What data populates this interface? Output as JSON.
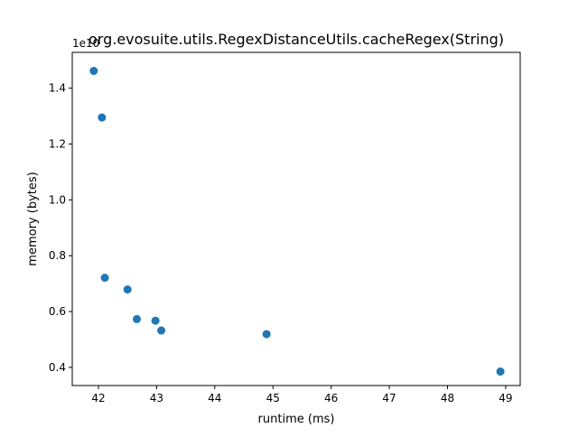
{
  "chart_data": {
    "type": "scatter",
    "title": "org.evosuite.utils.RegexDistanceUtils.cacheRegex(String)",
    "xlabel": "runtime (ms)",
    "ylabel": "memory (bytes)",
    "y_offset_label": "1e10",
    "xlim": [
      41.55,
      49.25
    ],
    "ylim": [
      0.3349,
      1.5284
    ],
    "x_ticks": [
      42,
      43,
      44,
      45,
      46,
      47,
      48,
      49
    ],
    "x_tick_labels": [
      "42",
      "43",
      "44",
      "45",
      "46",
      "47",
      "48",
      "49"
    ],
    "y_ticks": [
      0.4,
      0.6,
      0.8,
      1.0,
      1.2,
      1.4
    ],
    "y_tick_labels": [
      "0.4",
      "0.6",
      "0.8",
      "1.0",
      "1.2",
      "1.4"
    ],
    "grid": false,
    "marker_color": "#1f77b4",
    "points": [
      {
        "x": 41.92,
        "y": 1.462
      },
      {
        "x": 42.06,
        "y": 1.295
      },
      {
        "x": 42.11,
        "y": 0.721
      },
      {
        "x": 42.5,
        "y": 0.679
      },
      {
        "x": 42.66,
        "y": 0.573
      },
      {
        "x": 42.98,
        "y": 0.567
      },
      {
        "x": 43.08,
        "y": 0.532
      },
      {
        "x": 44.89,
        "y": 0.519
      },
      {
        "x": 48.91,
        "y": 0.385
      }
    ]
  }
}
